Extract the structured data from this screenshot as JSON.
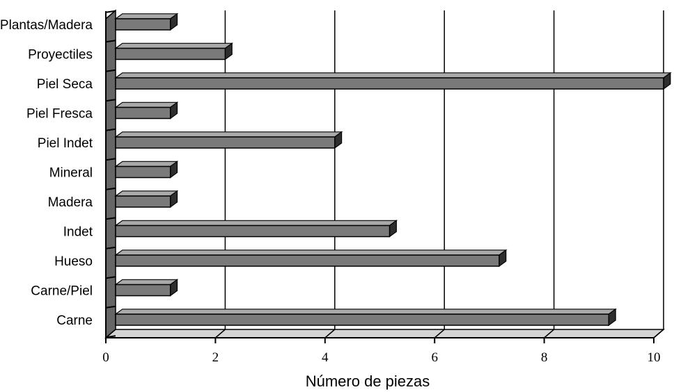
{
  "chart_data": {
    "type": "bar",
    "orientation": "horizontal",
    "style": "3d",
    "categories": [
      "Plantas/Madera",
      "Proyectiles",
      "Piel Seca",
      "Piel Fresca",
      "Piel Indet",
      "Mineral",
      "Madera",
      "Indet",
      "Hueso",
      "Carne/Piel",
      "Carne"
    ],
    "values": [
      1,
      2,
      10,
      1,
      4,
      1,
      1,
      5,
      7,
      1,
      9
    ],
    "title": "",
    "xlabel": "Número de piezas",
    "ylabel": "",
    "xlim": [
      0,
      10
    ],
    "x_ticks": [
      "0",
      "2",
      "4",
      "6",
      "8",
      "10"
    ],
    "grid": "vertical",
    "legend": "none",
    "colors": {
      "bar_front": "#7a7a7a",
      "bar_top": "#a9a9a9",
      "bar_side": "#2e2e2e",
      "wall": "#666666",
      "floor": "#d4d4d4",
      "gridline": "#000000"
    }
  }
}
